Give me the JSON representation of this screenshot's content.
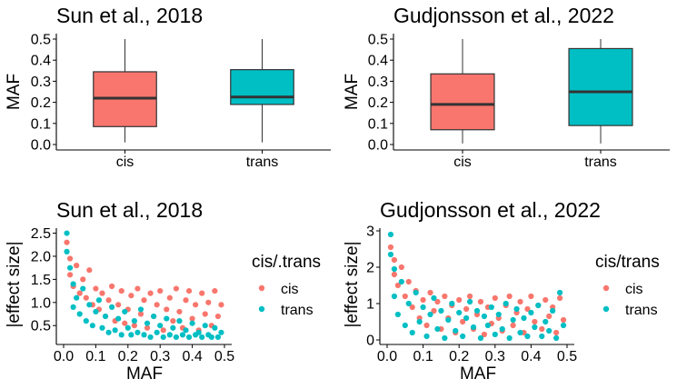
{
  "colors": {
    "cis": "#F8766D",
    "trans": "#00BFC4",
    "median": "#333333",
    "axis": "#000000"
  },
  "chart_data": [
    {
      "type": "box",
      "title": "Sun et al., 2018",
      "xlabel": "",
      "ylabel": "MAF",
      "ylim": [
        0,
        0.5
      ],
      "yticks": [
        "0.0",
        "0.1",
        "0.2",
        "0.3",
        "0.4",
        "0.5"
      ],
      "categories": [
        "cis",
        "trans"
      ],
      "boxes": [
        {
          "name": "cis",
          "min": 0.01,
          "q1": 0.085,
          "median": 0.22,
          "q3": 0.345,
          "max": 0.5
        },
        {
          "name": "trans",
          "min": 0.01,
          "q1": 0.19,
          "median": 0.225,
          "q3": 0.355,
          "max": 0.5
        }
      ]
    },
    {
      "type": "box",
      "title": "Gudjonsson et al., 2022",
      "xlabel": "",
      "ylabel": "MAF",
      "ylim": [
        0,
        0.5
      ],
      "yticks": [
        "0.0",
        "0.1",
        "0.2",
        "0.3",
        "0.4",
        "0.5"
      ],
      "categories": [
        "cis",
        "trans"
      ],
      "boxes": [
        {
          "name": "cis",
          "min": 0.005,
          "q1": 0.07,
          "median": 0.19,
          "q3": 0.335,
          "max": 0.5
        },
        {
          "name": "trans",
          "min": 0.005,
          "q1": 0.09,
          "median": 0.25,
          "q3": 0.455,
          "max": 0.5
        }
      ]
    },
    {
      "type": "scatter",
      "title": "Sun et al., 2018",
      "xlabel": "MAF",
      "ylabel": "|effect size|",
      "xlim": [
        0,
        0.5
      ],
      "ylim": [
        0.15,
        2.55
      ],
      "xticks": [
        "0.0",
        "0.1",
        "0.2",
        "0.3",
        "0.4",
        "0.5"
      ],
      "yticks": [
        "0.5",
        "1.0",
        "1.5",
        "2.0",
        "2.5"
      ],
      "legend": {
        "title": "cis/.trans",
        "entries": [
          "cis",
          "trans"
        ],
        "position": "right"
      },
      "series": [
        {
          "name": "cis",
          "points": [
            [
              0.01,
              2.3
            ],
            [
              0.02,
              1.95
            ],
            [
              0.02,
              1.6
            ],
            [
              0.03,
              1.35
            ],
            [
              0.04,
              1.8
            ],
            [
              0.05,
              1.2
            ],
            [
              0.06,
              1.5
            ],
            [
              0.07,
              1.1
            ],
            [
              0.08,
              1.7
            ],
            [
              0.09,
              0.95
            ],
            [
              0.1,
              1.3
            ],
            [
              0.11,
              0.85
            ],
            [
              0.12,
              1.2
            ],
            [
              0.13,
              0.7
            ],
            [
              0.14,
              1.05
            ],
            [
              0.15,
              1.35
            ],
            [
              0.16,
              0.6
            ],
            [
              0.17,
              0.95
            ],
            [
              0.18,
              1.25
            ],
            [
              0.19,
              0.55
            ],
            [
              0.2,
              0.85
            ],
            [
              0.21,
              1.15
            ],
            [
              0.22,
              0.5
            ],
            [
              0.23,
              1.3
            ],
            [
              0.24,
              0.75
            ],
            [
              0.25,
              1.05
            ],
            [
              0.26,
              0.45
            ],
            [
              0.27,
              1.2
            ],
            [
              0.28,
              0.7
            ],
            [
              0.29,
              0.95
            ],
            [
              0.3,
              1.25
            ],
            [
              0.31,
              0.4
            ],
            [
              0.32,
              0.85
            ],
            [
              0.33,
              1.1
            ],
            [
              0.34,
              0.6
            ],
            [
              0.35,
              1.3
            ],
            [
              0.36,
              0.8
            ],
            [
              0.37,
              0.45
            ],
            [
              0.38,
              1.05
            ],
            [
              0.39,
              1.25
            ],
            [
              0.4,
              0.65
            ],
            [
              0.41,
              0.95
            ],
            [
              0.42,
              0.4
            ],
            [
              0.43,
              1.2
            ],
            [
              0.44,
              0.75
            ],
            [
              0.45,
              1.0
            ],
            [
              0.46,
              0.5
            ],
            [
              0.47,
              1.25
            ],
            [
              0.48,
              0.7
            ],
            [
              0.49,
              0.95
            ]
          ]
        },
        {
          "name": "trans",
          "points": [
            [
              0.01,
              2.5
            ],
            [
              0.01,
              2.1
            ],
            [
              0.02,
              1.75
            ],
            [
              0.03,
              1.4
            ],
            [
              0.03,
              0.9
            ],
            [
              0.04,
              1.1
            ],
            [
              0.05,
              0.75
            ],
            [
              0.06,
              1.3
            ],
            [
              0.07,
              0.6
            ],
            [
              0.08,
              0.95
            ],
            [
              0.09,
              0.5
            ],
            [
              0.1,
              0.8
            ],
            [
              0.11,
              1.05
            ],
            [
              0.12,
              0.45
            ],
            [
              0.13,
              0.7
            ],
            [
              0.14,
              0.35
            ],
            [
              0.15,
              0.9
            ],
            [
              0.16,
              0.4
            ],
            [
              0.17,
              0.65
            ],
            [
              0.18,
              0.3
            ],
            [
              0.19,
              0.8
            ],
            [
              0.2,
              0.45
            ],
            [
              0.21,
              0.3
            ],
            [
              0.22,
              0.6
            ],
            [
              0.23,
              0.35
            ],
            [
              0.24,
              0.85
            ],
            [
              0.25,
              0.3
            ],
            [
              0.26,
              0.55
            ],
            [
              0.27,
              0.25
            ],
            [
              0.28,
              0.7
            ],
            [
              0.29,
              0.35
            ],
            [
              0.3,
              0.5
            ],
            [
              0.31,
              0.25
            ],
            [
              0.32,
              0.65
            ],
            [
              0.33,
              0.3
            ],
            [
              0.34,
              0.45
            ],
            [
              0.35,
              0.25
            ],
            [
              0.36,
              0.6
            ],
            [
              0.37,
              0.3
            ],
            [
              0.38,
              0.4
            ],
            [
              0.39,
              0.25
            ],
            [
              0.4,
              0.55
            ],
            [
              0.41,
              0.3
            ],
            [
              0.42,
              0.35
            ],
            [
              0.43,
              0.25
            ],
            [
              0.44,
              0.5
            ],
            [
              0.45,
              0.3
            ],
            [
              0.46,
              0.25
            ],
            [
              0.47,
              0.45
            ],
            [
              0.48,
              0.25
            ],
            [
              0.49,
              0.35
            ]
          ]
        }
      ]
    },
    {
      "type": "scatter",
      "title": "Gudjonsson et al., 2022",
      "xlabel": "MAF",
      "ylabel": "|effect size|",
      "xlim": [
        0,
        0.5
      ],
      "ylim": [
        -0.05,
        3.0
      ],
      "xticks": [
        "0.0",
        "0.1",
        "0.2",
        "0.3",
        "0.4",
        "0.5"
      ],
      "yticks": [
        "0",
        "1",
        "2",
        "3"
      ],
      "legend": {
        "title": "cis/trans",
        "entries": [
          "cis",
          "trans"
        ],
        "position": "right"
      },
      "series": [
        {
          "name": "cis",
          "points": [
            [
              0.01,
              2.55
            ],
            [
              0.02,
              2.2
            ],
            [
              0.02,
              1.8
            ],
            [
              0.03,
              1.5
            ],
            [
              0.04,
              2.0
            ],
            [
              0.05,
              1.2
            ],
            [
              0.06,
              1.6
            ],
            [
              0.07,
              0.9
            ],
            [
              0.08,
              1.35
            ],
            [
              0.09,
              0.6
            ],
            [
              0.1,
              1.1
            ],
            [
              0.11,
              0.4
            ],
            [
              0.12,
              1.3
            ],
            [
              0.13,
              0.8
            ],
            [
              0.14,
              1.05
            ],
            [
              0.15,
              0.3
            ],
            [
              0.16,
              1.2
            ],
            [
              0.17,
              0.6
            ],
            [
              0.18,
              0.95
            ],
            [
              0.19,
              0.2
            ],
            [
              0.2,
              1.1
            ],
            [
              0.21,
              0.5
            ],
            [
              0.22,
              0.85
            ],
            [
              0.23,
              1.2
            ],
            [
              0.24,
              0.3
            ],
            [
              0.25,
              0.7
            ],
            [
              0.26,
              1.05
            ],
            [
              0.27,
              0.15
            ],
            [
              0.28,
              0.9
            ],
            [
              0.29,
              0.45
            ],
            [
              0.3,
              1.15
            ],
            [
              0.31,
              0.6
            ],
            [
              0.32,
              0.25
            ],
            [
              0.33,
              0.95
            ],
            [
              0.34,
              1.2
            ],
            [
              0.35,
              0.4
            ],
            [
              0.36,
              0.75
            ],
            [
              0.37,
              1.05
            ],
            [
              0.38,
              0.2
            ],
            [
              0.39,
              0.85
            ],
            [
              0.4,
              1.2
            ],
            [
              0.41,
              0.5
            ],
            [
              0.42,
              0.95
            ],
            [
              0.43,
              0.3
            ],
            [
              0.44,
              1.1
            ],
            [
              0.45,
              0.65
            ],
            [
              0.46,
              0.9
            ],
            [
              0.47,
              0.2
            ],
            [
              0.48,
              1.15
            ],
            [
              0.49,
              0.55
            ]
          ]
        },
        {
          "name": "trans",
          "points": [
            [
              0.01,
              2.9
            ],
            [
              0.01,
              2.35
            ],
            [
              0.02,
              1.95
            ],
            [
              0.02,
              1.2
            ],
            [
              0.03,
              0.7
            ],
            [
              0.04,
              1.6
            ],
            [
              0.05,
              0.4
            ],
            [
              0.06,
              1.0
            ],
            [
              0.07,
              0.2
            ],
            [
              0.08,
              1.3
            ],
            [
              0.09,
              0.5
            ],
            [
              0.1,
              0.9
            ],
            [
              0.11,
              0.1
            ],
            [
              0.12,
              0.7
            ],
            [
              0.13,
              1.15
            ],
            [
              0.14,
              0.3
            ],
            [
              0.15,
              0.8
            ],
            [
              0.16,
              0.05
            ],
            [
              0.17,
              0.55
            ],
            [
              0.18,
              1.0
            ],
            [
              0.19,
              0.25
            ],
            [
              0.2,
              0.75
            ],
            [
              0.21,
              0.1
            ],
            [
              0.22,
              0.6
            ],
            [
              0.23,
              1.05
            ],
            [
              0.24,
              0.35
            ],
            [
              0.25,
              0.8
            ],
            [
              0.26,
              0.05
            ],
            [
              0.27,
              0.65
            ],
            [
              0.28,
              0.4
            ],
            [
              0.29,
              0.9
            ],
            [
              0.3,
              0.15
            ],
            [
              0.31,
              0.7
            ],
            [
              0.32,
              0.3
            ],
            [
              0.33,
              1.0
            ],
            [
              0.34,
              0.05
            ],
            [
              0.35,
              0.55
            ],
            [
              0.36,
              0.85
            ],
            [
              0.37,
              0.2
            ],
            [
              0.38,
              0.6
            ],
            [
              0.39,
              0.1
            ],
            [
              0.4,
              0.75
            ],
            [
              0.41,
              0.35
            ],
            [
              0.42,
              0.95
            ],
            [
              0.43,
              0.1
            ],
            [
              0.44,
              0.5
            ],
            [
              0.45,
              0.25
            ],
            [
              0.46,
              0.8
            ],
            [
              0.47,
              0.05
            ],
            [
              0.48,
              1.3
            ],
            [
              0.49,
              0.4
            ]
          ]
        }
      ]
    }
  ]
}
